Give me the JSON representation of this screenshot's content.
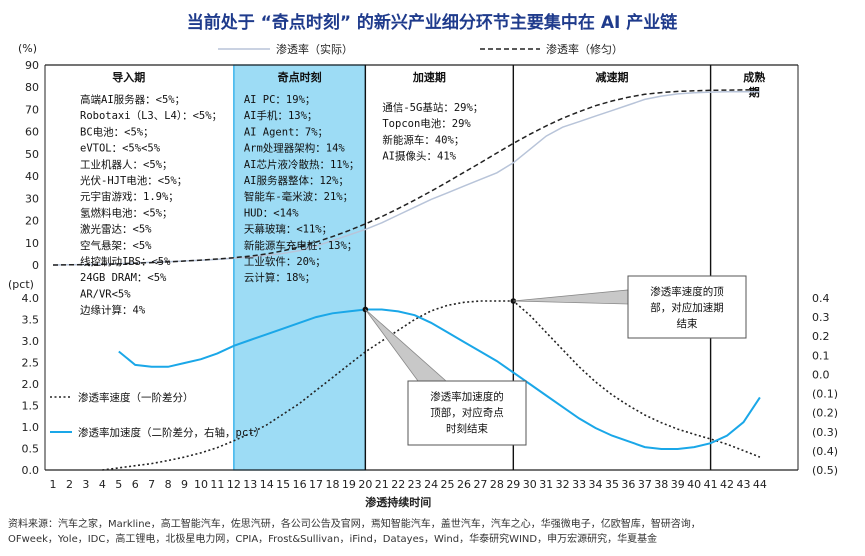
{
  "title": "当前处于 “奇点时刻” 的新兴产业细分环节主要集中在 AI 产业链",
  "source_lines": [
    "资料来源：汽车之家，Markline，高工智能汽车，佐思汽研，各公司公告及官网，焉知智能汽车，盖世汽车，汽车之心，华强微电子，亿欧智库，智研咨询，",
    "OFweek，Yole，IDC，高工锂电，北极星电力网，CPIA，Frost&Sullivan，iFind，Datayes，Wind，华泰研究WIND，申万宏源研究，华夏基金"
  ],
  "chart_data": [
    {
      "type": "line",
      "name": "top-panel",
      "ylabel": "(%)",
      "ylim": [
        0,
        90
      ],
      "yticks": [
        0,
        10,
        20,
        30,
        40,
        50,
        60,
        70,
        80,
        90
      ],
      "legend": [
        "渗透率（实际）",
        "渗透率（修匀）"
      ],
      "colors": {
        "actual": "#b8c4d9",
        "smoothed": "#222222"
      },
      "series": [
        {
          "name": "渗透率（实际）",
          "style": "solid",
          "x": [
            1,
            2,
            3,
            4,
            5,
            6,
            7,
            8,
            9,
            10,
            11,
            12,
            13,
            14,
            15,
            16,
            17,
            18,
            19,
            20,
            21,
            22,
            23,
            24,
            25,
            26,
            27,
            28,
            29,
            30,
            31,
            32,
            33,
            34,
            35,
            36,
            37,
            38,
            39,
            40,
            41,
            42,
            43,
            44
          ],
          "y": [
            0,
            0.1,
            0.2,
            0.4,
            0.6,
            0.9,
            1.2,
            1.5,
            1.8,
            2.1,
            2.5,
            3,
            3.6,
            4.3,
            5.2,
            6.5,
            8.5,
            11,
            13.5,
            16,
            19,
            22.5,
            26,
            29.5,
            32.5,
            35.5,
            38.5,
            41.5,
            46,
            52,
            58,
            62,
            64.5,
            67,
            69.5,
            72,
            74.5,
            76,
            77,
            77.5,
            77.8,
            78,
            78,
            78
          ]
        },
        {
          "name": "渗透率（修匀）",
          "style": "dashed",
          "x": [
            1,
            2,
            3,
            4,
            5,
            6,
            7,
            8,
            9,
            10,
            11,
            12,
            13,
            14,
            15,
            16,
            17,
            18,
            19,
            20,
            21,
            22,
            23,
            24,
            25,
            26,
            27,
            28,
            29,
            30,
            31,
            32,
            33,
            34,
            35,
            36,
            37,
            38,
            39,
            40,
            41,
            42,
            43,
            44
          ],
          "y": [
            0,
            0.1,
            0.2,
            0.3,
            0.5,
            0.8,
            1.1,
            1.4,
            1.8,
            2.2,
            2.7,
            3.3,
            4,
            5,
            6.4,
            8.2,
            10.3,
            12.8,
            15.5,
            18.5,
            21.8,
            25.4,
            29.2,
            33.2,
            37.4,
            41.7,
            46,
            50.4,
            54.7,
            58.8,
            62.6,
            66,
            69,
            71.7,
            73.8,
            75.5,
            76.8,
            77.6,
            78.1,
            78.4,
            78.6,
            78.7,
            78.8,
            78.8
          ]
        }
      ],
      "phases": [
        {
          "label": "导入期",
          "x0": 1,
          "x1": 12
        },
        {
          "label": "奇点时刻",
          "x0": 12,
          "x1": 20
        },
        {
          "label": "加速期",
          "x0": 20,
          "x1": 29
        },
        {
          "label": "减速期",
          "x0": 29,
          "x1": 41
        },
        {
          "label": "成熟期",
          "x0": 41,
          "x1": 44
        }
      ],
      "phase_label_lines": {
        "mature": [
          "成熟",
          "期"
        ]
      },
      "annotations": {
        "intro": [
          "高端AI服务器：<5%；",
          "Robotaxi（L3、L4）：<5%；",
          "BC电池：<5%；",
          "eVTOL：<5%<5%",
          "工业机器人：<5%；",
          "光伏-HJT电池：<5%；",
          "元宇宙游戏：1.9%；",
          "氢燃料电池：<5%；",
          "激光雷达：<5%",
          "空气悬架：<5%",
          "线控制动IBS：<5%",
          "24GB DRAM：<5%",
          "AR/VR<5%",
          "边缘计算：4%"
        ],
        "singularity": [
          "AI PC：19%；",
          "AI手机：13%；",
          "AI Agent：7%；",
          "Arm处理器架构：14%",
          "AI芯片液冷散热：11%；",
          "AI服务器整体：12%；",
          "智能车-毫米波：21%；",
          "HUD：<14%",
          "天幕玻璃：<11%；",
          "新能源车充电桩：13%；",
          "工业软件：20%；",
          "云计算：18%；"
        ],
        "accel": [
          "通信-5G基站：29%；",
          "Topcon电池：29%",
          "新能源车：40%；",
          "AI摄像头：41%"
        ]
      }
    },
    {
      "type": "line",
      "name": "bottom-panel",
      "ylabel": "(pct)",
      "xlabel": "渗透持续时间",
      "x_categories": [
        "1",
        "2",
        "3",
        "4",
        "5",
        "6",
        "7",
        "8",
        "9",
        "10",
        "11",
        "12",
        "13",
        "14",
        "15",
        "16",
        "17",
        "18",
        "19",
        "20",
        "21",
        "22",
        "23",
        "24",
        "25",
        "26",
        "27",
        "28",
        "29",
        "30",
        "31",
        "32",
        "33",
        "34",
        "35",
        "36",
        "37",
        "38",
        "39",
        "40",
        "41",
        "42",
        "43",
        "44"
      ],
      "ylim_left": [
        0,
        4.0
      ],
      "yticks_left": [
        "0.0",
        "0.5",
        "1.0",
        "1.5",
        "2.0",
        "2.5",
        "3.0",
        "3.5",
        "4.0"
      ],
      "ylim_right": [
        -0.5,
        0.4
      ],
      "yticks_right": [
        "0.4",
        "0.3",
        "0.2",
        "0.1",
        "0.0",
        "(0.1)",
        "(0.2)",
        "(0.3)",
        "(0.4)",
        "(0.5)"
      ],
      "colors": {
        "velocity": "#222222",
        "accel": "#1aa7e8"
      },
      "series": [
        {
          "name": "渗透率速度（一阶差分）",
          "axis": "left",
          "style": "dotted",
          "x": [
            4,
            5,
            6,
            7,
            8,
            9,
            10,
            11,
            12,
            13,
            14,
            15,
            16,
            17,
            18,
            19,
            20,
            21,
            22,
            23,
            24,
            25,
            26,
            27,
            28,
            29,
            30,
            31,
            32,
            33,
            34,
            35,
            36,
            37,
            38,
            39,
            40,
            41,
            42,
            43,
            44
          ],
          "y": [
            0,
            0.05,
            0.1,
            0.15,
            0.22,
            0.3,
            0.4,
            0.52,
            0.68,
            0.85,
            1.05,
            1.3,
            1.55,
            1.85,
            2.15,
            2.45,
            2.75,
            3.0,
            3.25,
            3.5,
            3.7,
            3.83,
            3.9,
            3.93,
            3.93,
            3.93,
            3.6,
            3.2,
            2.8,
            2.4,
            2.05,
            1.75,
            1.5,
            1.28,
            1.1,
            0.95,
            0.83,
            0.72,
            0.6,
            0.45,
            0.3
          ]
        },
        {
          "name": "渗透率加速度（二阶差分，右轴，pct）",
          "axis": "right",
          "style": "solid",
          "x": [
            5,
            6,
            7,
            8,
            9,
            10,
            11,
            12,
            13,
            14,
            15,
            16,
            17,
            18,
            19,
            20,
            21,
            22,
            23,
            24,
            25,
            26,
            27,
            28,
            29,
            30,
            31,
            32,
            33,
            34,
            35,
            36,
            37,
            38,
            39,
            40,
            41,
            42,
            43,
            44
          ],
          "y": [
            0.12,
            0.05,
            0.04,
            0.04,
            0.06,
            0.08,
            0.11,
            0.15,
            0.18,
            0.21,
            0.24,
            0.27,
            0.3,
            0.32,
            0.33,
            0.34,
            0.34,
            0.33,
            0.31,
            0.27,
            0.22,
            0.17,
            0.12,
            0.07,
            0.01,
            -0.05,
            -0.11,
            -0.17,
            -0.23,
            -0.28,
            -0.32,
            -0.35,
            -0.38,
            -0.39,
            -0.39,
            -0.38,
            -0.36,
            -0.32,
            -0.25,
            -0.12
          ]
        }
      ],
      "legend": [
        "渗透率速度（一阶差分）",
        "渗透率加速度（二阶差分，右轴，pct）"
      ],
      "callouts": [
        {
          "text_lines": [
            "渗透率速度的顶",
            "部，对应加速期",
            "结束"
          ],
          "point_x": 29,
          "point_y": 3.93,
          "axis": "left"
        },
        {
          "text_lines": [
            "渗透率加速度的",
            "顶部，对应奇点",
            "时刻结束"
          ],
          "point_x": 20,
          "point_y": 0.34,
          "axis": "right"
        }
      ]
    }
  ]
}
